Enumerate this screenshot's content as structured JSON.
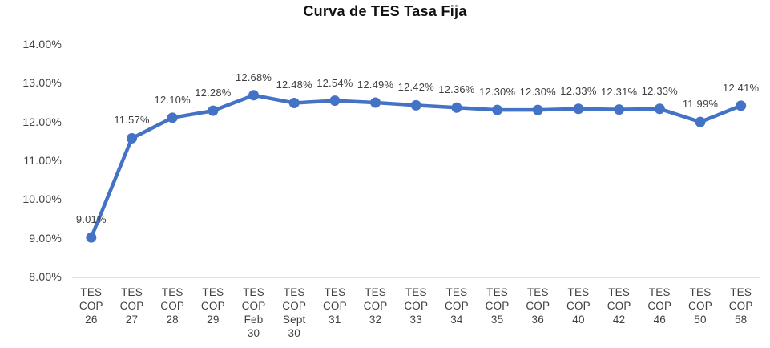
{
  "chart_data": {
    "type": "line",
    "title": "Curva de TES Tasa Fija",
    "categories": [
      "TES COP 26",
      "TES COP 27",
      "TES COP 28",
      "TES COP 29",
      "TES COP Feb 30",
      "TES COP Sept 30",
      "TES COP 31",
      "TES COP 32",
      "TES COP 33",
      "TES COP 34",
      "TES COP 35",
      "TES COP 36",
      "TES COP 40",
      "TES COP 42",
      "TES COP 46",
      "TES COP 50",
      "TES COP 58"
    ],
    "values": [
      9.01,
      11.57,
      12.1,
      12.28,
      12.68,
      12.48,
      12.54,
      12.49,
      12.42,
      12.36,
      12.3,
      12.3,
      12.33,
      12.31,
      12.33,
      11.99,
      12.41
    ],
    "value_labels": [
      "9.01%",
      "11.57%",
      "12.10%",
      "12.28%",
      "12.68%",
      "12.48%",
      "12.54%",
      "12.49%",
      "12.42%",
      "12.36%",
      "12.30%",
      "12.30%",
      "12.33%",
      "12.31%",
      "12.33%",
      "11.99%",
      "12.41%"
    ],
    "y_ticks": [
      "14.00%",
      "13.00%",
      "12.00%",
      "11.00%",
      "10.00%",
      "9.00%",
      "8.00%"
    ],
    "ylim": [
      8,
      14
    ],
    "xlabel": "",
    "ylabel": "",
    "grid": false,
    "legend": "none",
    "colors": {
      "line": "#4472C4",
      "marker": "#4472C4",
      "axis_line": "#D9D9D9",
      "tick_text": "#404040",
      "data_label_text": "#404040",
      "title_text": "#111111",
      "background": "#FFFFFF"
    }
  }
}
